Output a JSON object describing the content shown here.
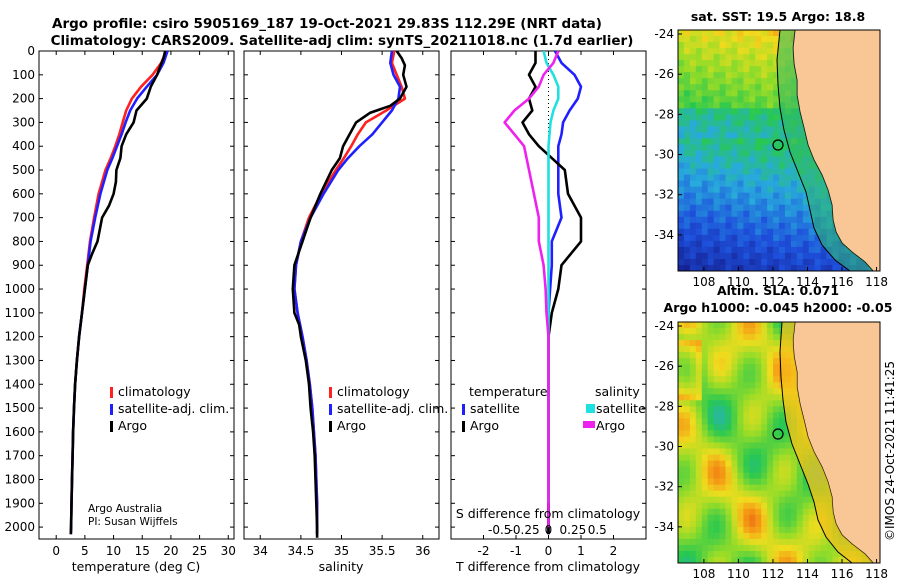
{
  "title_line1": "Argo profile: csiro 5905169_187 19-Oct-2021 29.83S 112.29E (NRT data)",
  "title_line2": "Climatology: CARS2009. Satellite-adj clim: synTS_20211018.nc (1.7d earlier)",
  "credit_line1": "Argo Australia",
  "credit_line2": "PI: Susan Wijffels",
  "timestamp": "©IMOS 24-Oct-2021 11:41:25",
  "colors": {
    "climatology": "#ff2020",
    "satellite": "#2020ff",
    "argo": "#000000",
    "sat_salinity": "#20e0e0",
    "argo_salinity": "#ee22ee",
    "land": "#f9c695"
  },
  "chart_data": [
    {
      "type": "line",
      "name": "temperature profile",
      "xlabel": "temperature (deg C)",
      "xlim": [
        -3,
        31
      ],
      "xticks": [
        0,
        5,
        10,
        15,
        20,
        25,
        30
      ],
      "xtick_labels": [
        "0",
        "5",
        "10",
        "15",
        "20",
        "25",
        "30"
      ],
      "ylim": [
        2050,
        0
      ],
      "yticks": [
        0,
        100,
        200,
        300,
        400,
        500,
        600,
        700,
        800,
        900,
        1000,
        1100,
        1200,
        1300,
        1400,
        1500,
        1600,
        1700,
        1800,
        1900,
        2000
      ],
      "ytick_labels": [
        "0",
        "100",
        "200",
        "300",
        "400",
        "500",
        "600",
        "700",
        "800",
        "900",
        "1000",
        "1100",
        "1200",
        "1300",
        "1400",
        "1500",
        "1600",
        "1700",
        "1800",
        "1900",
        "2000"
      ],
      "legend": [
        "climatology",
        "satellite-adj. clim.",
        "Argo"
      ],
      "series": [
        {
          "name": "climatology",
          "x": [
            19.2,
            18.3,
            16.8,
            14.8,
            13.2,
            12.2,
            11.6,
            11.0,
            10.3,
            9.5,
            8.6,
            7.4,
            6.6,
            5.9,
            5.4,
            4.9,
            4.5,
            4.0,
            3.6,
            3.3,
            3.1,
            2.95,
            2.85,
            2.75,
            2.67,
            2.6,
            2.55
          ],
          "y": [
            0,
            50,
            100,
            150,
            200,
            250,
            300,
            350,
            400,
            450,
            500,
            600,
            700,
            800,
            900,
            1000,
            1100,
            1200,
            1300,
            1400,
            1500,
            1600,
            1700,
            1800,
            1900,
            2000,
            2030
          ]
        },
        {
          "name": "satellite-adj. clim.",
          "x": [
            19.4,
            18.7,
            17.6,
            15.8,
            14.1,
            12.9,
            12.1,
            11.4,
            10.6,
            9.8,
            8.9,
            7.7,
            6.8,
            6.0,
            5.5,
            5.0,
            4.5,
            4.0,
            3.6,
            3.3,
            3.1,
            2.95,
            2.85,
            2.75,
            2.67,
            2.6,
            2.55
          ],
          "y": [
            0,
            50,
            100,
            150,
            200,
            250,
            300,
            350,
            400,
            450,
            500,
            600,
            700,
            800,
            900,
            1000,
            1100,
            1200,
            1300,
            1400,
            1500,
            1600,
            1700,
            1800,
            1900,
            2000,
            2030
          ]
        },
        {
          "name": "Argo",
          "x": [
            19.0,
            18.7,
            18.2,
            17.6,
            16.5,
            15.8,
            14.0,
            13.5,
            12.2,
            11.4,
            11.2,
            10.5,
            10.4,
            10.0,
            9.2,
            8.0,
            7.2,
            6.3,
            5.5,
            5.0,
            4.5,
            4.0,
            3.6,
            3.3,
            3.1,
            2.95,
            2.85,
            2.75,
            2.67,
            2.6,
            2.55
          ],
          "y": [
            0,
            30,
            60,
            100,
            150,
            200,
            250,
            300,
            350,
            400,
            450,
            500,
            550,
            600,
            650,
            700,
            800,
            850,
            900,
            1000,
            1100,
            1200,
            1300,
            1400,
            1500,
            1600,
            1700,
            1800,
            1900,
            2000,
            2030
          ]
        }
      ]
    },
    {
      "type": "line",
      "name": "salinity profile",
      "xlabel": "salinity",
      "xlim": [
        33.8,
        36.2
      ],
      "xticks": [
        34,
        34.5,
        35,
        35.5,
        36
      ],
      "xtick_labels": [
        "34",
        "34.5",
        "35",
        "35.5",
        "36"
      ],
      "ylim": [
        2050,
        0
      ],
      "legend": [
        "climatology",
        "satellite-adj. clim.",
        "Argo"
      ],
      "series": [
        {
          "name": "climatology",
          "x": [
            35.65,
            35.62,
            35.68,
            35.74,
            35.78,
            35.55,
            35.3,
            35.2,
            35.12,
            35.03,
            34.93,
            34.75,
            34.6,
            34.5,
            34.44,
            34.42,
            34.46,
            34.52,
            34.57,
            34.61,
            34.64,
            34.66,
            34.68,
            34.69,
            34.7,
            34.7,
            34.7
          ],
          "y": [
            0,
            50,
            100,
            150,
            200,
            250,
            300,
            350,
            400,
            450,
            500,
            600,
            700,
            800,
            900,
            1000,
            1100,
            1200,
            1300,
            1400,
            1500,
            1600,
            1700,
            1800,
            1900,
            2000,
            2030
          ]
        },
        {
          "name": "satellite-adj. clim.",
          "x": [
            35.62,
            35.6,
            35.64,
            35.72,
            35.7,
            35.62,
            35.5,
            35.38,
            35.22,
            35.08,
            34.96,
            34.78,
            34.62,
            34.5,
            34.44,
            34.42,
            34.46,
            34.52,
            34.57,
            34.61,
            34.64,
            34.66,
            34.68,
            34.69,
            34.7,
            34.7,
            34.7
          ],
          "y": [
            0,
            50,
            100,
            150,
            200,
            250,
            300,
            350,
            400,
            450,
            500,
            600,
            700,
            800,
            900,
            1000,
            1100,
            1200,
            1300,
            1400,
            1500,
            1600,
            1700,
            1800,
            1900,
            2000,
            2030
          ]
        },
        {
          "name": "Argo",
          "x": [
            35.68,
            35.74,
            35.78,
            35.76,
            35.8,
            35.72,
            35.6,
            35.35,
            35.18,
            35.1,
            35.02,
            34.98,
            34.88,
            34.74,
            34.62,
            34.52,
            34.42,
            34.4,
            34.42,
            34.48,
            34.5,
            34.56,
            34.6,
            34.62,
            34.65,
            34.67,
            34.68,
            34.69,
            34.7,
            34.7,
            34.7,
            34.7
          ],
          "y": [
            0,
            30,
            60,
            100,
            150,
            200,
            230,
            260,
            300,
            350,
            400,
            450,
            500,
            600,
            700,
            800,
            900,
            1000,
            1100,
            1150,
            1200,
            1300,
            1400,
            1500,
            1600,
            1700,
            1800,
            1900,
            2000,
            2030,
            2040,
            2045
          ]
        }
      ]
    },
    {
      "type": "line",
      "name": "difference from climatology",
      "xlabel": "T difference from climatology",
      "xlabel_top": "S difference from climatology",
      "xlim": [
        -3,
        3
      ],
      "xticks": [
        -2,
        -1,
        0,
        1,
        2
      ],
      "xtick_labels": [
        "-2",
        "-1",
        "0",
        "1",
        "2"
      ],
      "s_ticks": [
        -0.5,
        -0.25,
        0,
        0.25,
        0.5
      ],
      "s_tick_labels": [
        "-0.5",
        "-0.25",
        "0",
        "0.25",
        "0.5"
      ],
      "ylim": [
        2050,
        0
      ],
      "legend_title_left": "temperature",
      "legend_title_right": "salinity",
      "legend_left": [
        "satellite",
        "Argo"
      ],
      "legend_right": [
        "satellite",
        "Argo"
      ],
      "series": [
        {
          "name": "T satellite",
          "x": [
            0.2,
            0.4,
            0.8,
            1.0,
            0.9,
            0.65,
            0.45,
            0.4,
            0.3,
            0.3,
            0.3,
            0.3,
            0.4,
            0.1,
            0.1,
            0.05,
            0.0,
            0.0,
            0.0,
            0.0,
            0.0,
            0.0,
            0.0,
            0.0,
            0.0,
            0.0,
            0.0
          ],
          "y": [
            0,
            50,
            100,
            150,
            200,
            250,
            300,
            350,
            400,
            450,
            500,
            600,
            700,
            800,
            900,
            1000,
            1100,
            1200,
            1300,
            1400,
            1500,
            1600,
            1700,
            1800,
            1900,
            2000,
            2030
          ]
        },
        {
          "name": "T Argo",
          "x": [
            -0.4,
            -0.4,
            -0.6,
            -0.4,
            -0.6,
            -0.5,
            -0.8,
            -0.6,
            -0.3,
            0.1,
            0.5,
            0.6,
            1.0,
            1.0,
            0.4,
            0.3,
            0.1,
            0.0,
            0.0,
            0.0,
            0.0,
            0.0,
            0.0,
            0.0,
            0.0,
            0.0,
            0.0
          ],
          "y": [
            0,
            50,
            100,
            150,
            200,
            250,
            300,
            350,
            400,
            450,
            500,
            600,
            700,
            800,
            900,
            1000,
            1100,
            1200,
            1300,
            1400,
            1500,
            1600,
            1700,
            1800,
            1900,
            2000,
            2030
          ]
        },
        {
          "name": "S satellite",
          "x": [
            -0.05,
            -0.02,
            0.05,
            0.1,
            0.1,
            0.05,
            0.02,
            0.0,
            0.0,
            0.0,
            0.0,
            0.0,
            0.0,
            0.0,
            0.0,
            0.0,
            0.0,
            0.0,
            0.0,
            0.0,
            0.0,
            0.0,
            0.0
          ],
          "y": [
            0,
            50,
            100,
            150,
            200,
            250,
            300,
            400,
            500,
            600,
            700,
            800,
            900,
            1000,
            1100,
            1200,
            1300,
            1400,
            1500,
            1600,
            1700,
            1800,
            1900
          ]
        },
        {
          "name": "S Argo",
          "x": [
            0.1,
            0.05,
            -0.05,
            -0.1,
            -0.2,
            -0.35,
            -0.45,
            -0.35,
            -0.25,
            -0.2,
            -0.15,
            -0.1,
            -0.1,
            -0.05,
            -0.03,
            -0.02,
            0.0,
            0.0,
            0.0,
            0.0,
            0.0,
            0.0,
            0.0,
            0.0,
            0.0
          ],
          "y": [
            0,
            50,
            100,
            150,
            200,
            250,
            300,
            350,
            400,
            500,
            600,
            700,
            800,
            900,
            1000,
            1100,
            1200,
            1300,
            1400,
            1500,
            1600,
            1700,
            1800,
            1900,
            2000
          ]
        }
      ]
    },
    {
      "type": "heatmap",
      "name": "satellite SST map",
      "title": "sat. SST: 19.5 Argo: 18.8",
      "xlim": [
        106.5,
        118.2
      ],
      "ylim": [
        -35.8,
        -23.8
      ],
      "xticks": [
        108,
        110,
        112,
        114,
        116,
        118
      ],
      "xtick_labels": [
        "108",
        "110",
        "112",
        "114",
        "116",
        "118"
      ],
      "yticks": [
        -24,
        -26,
        -28,
        -30,
        -32,
        -34
      ],
      "ytick_labels": [
        "-24",
        "-26",
        "-28",
        "-30",
        "-32",
        "-34"
      ],
      "marker": {
        "lon": 112.29,
        "lat": -29.83
      }
    },
    {
      "type": "heatmap",
      "name": "altimetry SLA map",
      "title_line1": "Altim. SLA: 0.071",
      "title_line2": "Argo h1000: -0.045 h2000: -0.05",
      "xlim": [
        106.5,
        118.2
      ],
      "ylim": [
        -35.8,
        -23.8
      ],
      "xticks": [
        108,
        110,
        112,
        114,
        116,
        118
      ],
      "xtick_labels": [
        "108",
        "110",
        "112",
        "114",
        "116",
        "118"
      ],
      "yticks": [
        -24,
        -26,
        -28,
        -30,
        -32,
        -34
      ],
      "ytick_labels": [
        "-24",
        "-26",
        "-28",
        "-30",
        "-32",
        "-34"
      ],
      "marker": {
        "lon": 112.29,
        "lat": -29.83
      }
    }
  ]
}
